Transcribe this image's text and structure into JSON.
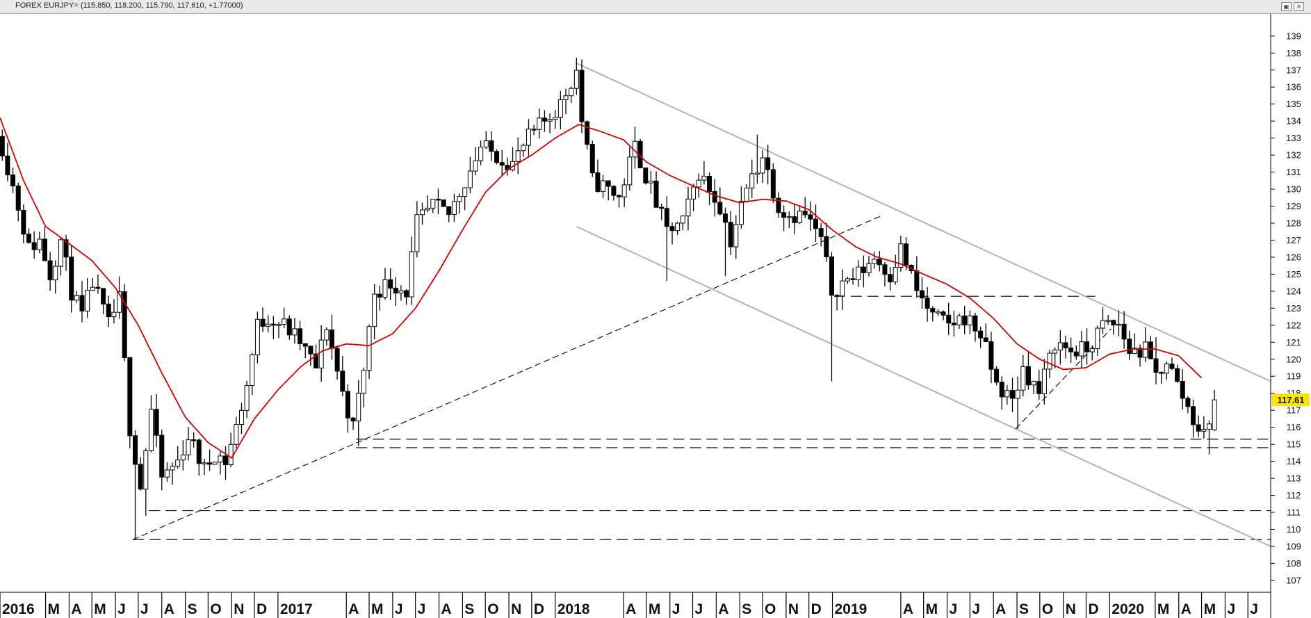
{
  "window": {
    "title": "FOREX EURJPY= (115.850, 118.200, 115.790, 117.610, +1.77000)",
    "restore_icon": "restore-icon",
    "close_icon": "close-icon"
  },
  "chart_data": {
    "type": "candlestick",
    "instrument": "FOREX EURJPY=",
    "ohlc_header": {
      "open": 115.85,
      "high": 118.2,
      "low": 115.79,
      "close": 117.61,
      "change": 1.77
    },
    "last_price": "117.61",
    "y_axis": {
      "min": 107,
      "max": 139,
      "ticks": [
        107,
        108,
        109,
        110,
        111,
        112,
        113,
        114,
        115,
        116,
        117,
        118,
        119,
        120,
        121,
        122,
        123,
        124,
        125,
        126,
        127,
        128,
        129,
        130,
        131,
        132,
        133,
        134,
        135,
        136,
        137,
        138,
        139
      ],
      "position": "right"
    },
    "x_axis": {
      "start": "2016-01-01",
      "end": "2020-07-31",
      "labels": [
        {
          "text": "2016",
          "date": "2016-01-01",
          "bold_year": true
        },
        {
          "text": "M",
          "date": "2016-03-01"
        },
        {
          "text": "A",
          "date": "2016-04-01"
        },
        {
          "text": "M",
          "date": "2016-05-01"
        },
        {
          "text": "J",
          "date": "2016-06-01"
        },
        {
          "text": "J",
          "date": "2016-07-01"
        },
        {
          "text": "A",
          "date": "2016-08-01"
        },
        {
          "text": "S",
          "date": "2016-09-01"
        },
        {
          "text": "O",
          "date": "2016-10-01"
        },
        {
          "text": "N",
          "date": "2016-11-01"
        },
        {
          "text": "D",
          "date": "2016-12-01"
        },
        {
          "text": "2017",
          "date": "2017-01-01",
          "bold_year": true
        },
        {
          "text": "A",
          "date": "2017-04-01"
        },
        {
          "text": "M",
          "date": "2017-05-01"
        },
        {
          "text": "J",
          "date": "2017-06-01"
        },
        {
          "text": "J",
          "date": "2017-07-01"
        },
        {
          "text": "A",
          "date": "2017-08-01"
        },
        {
          "text": "S",
          "date": "2017-09-01"
        },
        {
          "text": "O",
          "date": "2017-10-01"
        },
        {
          "text": "N",
          "date": "2017-11-01"
        },
        {
          "text": "D",
          "date": "2017-12-01"
        },
        {
          "text": "2018",
          "date": "2018-01-01",
          "bold_year": true
        },
        {
          "text": "A",
          "date": "2018-04-01"
        },
        {
          "text": "M",
          "date": "2018-05-01"
        },
        {
          "text": "J",
          "date": "2018-06-01"
        },
        {
          "text": "J",
          "date": "2018-07-01"
        },
        {
          "text": "A",
          "date": "2018-08-01"
        },
        {
          "text": "S",
          "date": "2018-09-01"
        },
        {
          "text": "O",
          "date": "2018-10-01"
        },
        {
          "text": "N",
          "date": "2018-11-01"
        },
        {
          "text": "D",
          "date": "2018-12-01"
        },
        {
          "text": "2019",
          "date": "2019-01-01",
          "bold_year": true
        },
        {
          "text": "A",
          "date": "2019-04-01"
        },
        {
          "text": "M",
          "date": "2019-05-01"
        },
        {
          "text": "J",
          "date": "2019-06-01"
        },
        {
          "text": "J",
          "date": "2019-07-01"
        },
        {
          "text": "A",
          "date": "2019-08-01"
        },
        {
          "text": "S",
          "date": "2019-09-01"
        },
        {
          "text": "O",
          "date": "2019-10-01"
        },
        {
          "text": "N",
          "date": "2019-11-01"
        },
        {
          "text": "D",
          "date": "2019-12-01"
        },
        {
          "text": "2020",
          "date": "2020-01-01",
          "bold_year": true
        },
        {
          "text": "M",
          "date": "2020-03-01"
        },
        {
          "text": "A",
          "date": "2020-04-01"
        },
        {
          "text": "M",
          "date": "2020-05-01"
        },
        {
          "text": "J",
          "date": "2020-06-01"
        },
        {
          "text": "J",
          "date": "2020-07-01"
        }
      ]
    },
    "price_anchors": [
      [
        "2016-01-04",
        132.5
      ],
      [
        "2016-01-25",
        129.0
      ],
      [
        "2016-02-08",
        126.5
      ],
      [
        "2016-02-22",
        127.0
      ],
      [
        "2016-03-07",
        125.0
      ],
      [
        "2016-03-21",
        127.0
      ],
      [
        "2016-04-04",
        124.0
      ],
      [
        "2016-04-18",
        122.5
      ],
      [
        "2016-05-02",
        124.5
      ],
      [
        "2016-05-23",
        122.0
      ],
      [
        "2016-06-06",
        123.5
      ],
      [
        "2016-06-20",
        116.0
      ],
      [
        "2016-07-04",
        112.5
      ],
      [
        "2016-07-18",
        117.0
      ],
      [
        "2016-08-01",
        113.0
      ],
      [
        "2016-08-22",
        114.0
      ],
      [
        "2016-09-05",
        115.5
      ],
      [
        "2016-09-26",
        113.5
      ],
      [
        "2016-10-10",
        114.5
      ],
      [
        "2016-10-24",
        114.0
      ],
      [
        "2016-11-07",
        116.0
      ],
      [
        "2016-11-21",
        118.5
      ],
      [
        "2016-12-05",
        122.0
      ],
      [
        "2016-12-19",
        122.5
      ],
      [
        "2017-01-09",
        122.0
      ],
      [
        "2017-01-30",
        121.0
      ],
      [
        "2017-02-20",
        119.5
      ],
      [
        "2017-03-06",
        122.0
      ],
      [
        "2017-03-27",
        118.0
      ],
      [
        "2017-04-10",
        116.0
      ],
      [
        "2017-04-24",
        119.5
      ],
      [
        "2017-05-08",
        124.0
      ],
      [
        "2017-05-29",
        124.5
      ],
      [
        "2017-06-19",
        124.0
      ],
      [
        "2017-07-03",
        128.0
      ],
      [
        "2017-07-24",
        129.0
      ],
      [
        "2017-08-14",
        128.5
      ],
      [
        "2017-09-04",
        130.5
      ],
      [
        "2017-09-25",
        132.5
      ],
      [
        "2017-10-16",
        132.0
      ],
      [
        "2017-11-06",
        131.5
      ],
      [
        "2017-11-27",
        133.0
      ],
      [
        "2017-12-18",
        134.0
      ],
      [
        "2018-01-08",
        135.0
      ],
      [
        "2018-01-29",
        137.0
      ],
      [
        "2018-02-05",
        134.0
      ],
      [
        "2018-02-19",
        130.5
      ],
      [
        "2018-03-12",
        130.0
      ],
      [
        "2018-03-26",
        129.5
      ],
      [
        "2018-04-16",
        132.5
      ],
      [
        "2018-05-07",
        130.0
      ],
      [
        "2018-05-28",
        127.5
      ],
      [
        "2018-06-18",
        128.0
      ],
      [
        "2018-07-09",
        131.0
      ],
      [
        "2018-08-06",
        129.0
      ],
      [
        "2018-08-20",
        127.0
      ],
      [
        "2018-09-10",
        130.0
      ],
      [
        "2018-10-01",
        132.0
      ],
      [
        "2018-10-22",
        129.0
      ],
      [
        "2018-11-05",
        128.5
      ],
      [
        "2018-11-26",
        128.5
      ],
      [
        "2018-12-17",
        127.0
      ],
      [
        "2018-12-31",
        124.0
      ],
      [
        "2019-01-14",
        124.5
      ],
      [
        "2019-02-04",
        125.0
      ],
      [
        "2019-02-25",
        126.0
      ],
      [
        "2019-03-18",
        125.0
      ],
      [
        "2019-04-01",
        126.5
      ],
      [
        "2019-04-22",
        124.0
      ],
      [
        "2019-05-13",
        122.5
      ],
      [
        "2019-06-03",
        122.0
      ],
      [
        "2019-06-24",
        122.5
      ],
      [
        "2019-07-15",
        121.5
      ],
      [
        "2019-08-05",
        118.5
      ],
      [
        "2019-08-26",
        117.5
      ],
      [
        "2019-09-09",
        119.5
      ],
      [
        "2019-09-30",
        118.0
      ],
      [
        "2019-10-21",
        121.0
      ],
      [
        "2019-11-11",
        120.5
      ],
      [
        "2019-12-02",
        120.5
      ],
      [
        "2019-12-23",
        122.0
      ],
      [
        "2020-01-13",
        122.0
      ],
      [
        "2020-01-27",
        120.5
      ],
      [
        "2020-02-17",
        120.5
      ],
      [
        "2020-03-02",
        119.0
      ],
      [
        "2020-03-16",
        120.0
      ],
      [
        "2020-03-30",
        118.5
      ],
      [
        "2020-04-20",
        116.5
      ],
      [
        "2020-05-04",
        115.5
      ],
      [
        "2020-05-18",
        117.6
      ]
    ],
    "notable_wicks": [
      {
        "date": "2016-06-24",
        "low": 109.4
      },
      {
        "date": "2016-07-08",
        "low": 110.8
      },
      {
        "date": "2017-04-14",
        "low": 114.9
      },
      {
        "date": "2018-01-29",
        "high": 137.5
      },
      {
        "date": "2018-05-28",
        "low": 124.6
      },
      {
        "date": "2018-08-13",
        "low": 124.9
      },
      {
        "date": "2018-09-24",
        "high": 133.2
      },
      {
        "date": "2019-01-03",
        "low": 118.7
      },
      {
        "date": "2019-08-30",
        "low": 115.9
      },
      {
        "date": "2019-12-23",
        "high": 122.9
      },
      {
        "date": "2020-02-28",
        "high": 121.3
      },
      {
        "date": "2020-05-08",
        "low": 114.4
      },
      {
        "date": "2020-05-22",
        "high": 118.2
      }
    ],
    "series": [
      {
        "kind": "candles",
        "up_color": "#ffffff",
        "down_color": "#000000"
      },
      {
        "kind": "moving_average",
        "color": "#d40000",
        "points": [
          [
            "2016-01-01",
            134.2
          ],
          [
            "2016-02-01",
            130.5
          ],
          [
            "2016-03-01",
            127.8
          ],
          [
            "2016-04-01",
            126.8
          ],
          [
            "2016-05-01",
            125.8
          ],
          [
            "2016-06-01",
            124.2
          ],
          [
            "2016-07-01",
            122.0
          ],
          [
            "2016-08-01",
            119.2
          ],
          [
            "2016-09-01",
            116.6
          ],
          [
            "2016-10-01",
            115.1
          ],
          [
            "2016-11-01",
            114.2
          ],
          [
            "2016-12-01",
            116.5
          ],
          [
            "2017-01-01",
            118.2
          ],
          [
            "2017-02-01",
            119.6
          ],
          [
            "2017-03-01",
            120.5
          ],
          [
            "2017-04-01",
            120.9
          ],
          [
            "2017-05-01",
            120.8
          ],
          [
            "2017-06-01",
            121.5
          ],
          [
            "2017-07-01",
            123.0
          ],
          [
            "2017-08-01",
            125.2
          ],
          [
            "2017-09-01",
            127.6
          ],
          [
            "2017-10-01",
            129.8
          ],
          [
            "2017-11-01",
            131.2
          ],
          [
            "2017-12-01",
            132.0
          ],
          [
            "2018-01-01",
            133.0
          ],
          [
            "2018-02-01",
            133.8
          ],
          [
            "2018-03-01",
            133.4
          ],
          [
            "2018-04-01",
            132.9
          ],
          [
            "2018-05-01",
            131.6
          ],
          [
            "2018-06-01",
            130.8
          ],
          [
            "2018-07-01",
            130.2
          ],
          [
            "2018-08-01",
            129.6
          ],
          [
            "2018-09-01",
            129.2
          ],
          [
            "2018-10-01",
            129.4
          ],
          [
            "2018-11-01",
            129.3
          ],
          [
            "2018-12-01",
            128.8
          ],
          [
            "2019-01-01",
            127.6
          ],
          [
            "2019-02-01",
            126.6
          ],
          [
            "2019-03-01",
            126.0
          ],
          [
            "2019-04-01",
            125.6
          ],
          [
            "2019-05-01",
            125.0
          ],
          [
            "2019-06-01",
            124.4
          ],
          [
            "2019-07-01",
            123.6
          ],
          [
            "2019-08-01",
            122.4
          ],
          [
            "2019-09-01",
            120.9
          ],
          [
            "2019-10-01",
            120.0
          ],
          [
            "2019-11-01",
            119.4
          ],
          [
            "2019-12-01",
            119.5
          ],
          [
            "2020-01-01",
            120.3
          ],
          [
            "2020-02-01",
            120.6
          ],
          [
            "2020-03-01",
            120.6
          ],
          [
            "2020-04-01",
            120.2
          ],
          [
            "2020-05-01",
            118.9
          ]
        ]
      }
    ],
    "trendlines": [
      {
        "style": "solid",
        "color": "#b4b4b4",
        "from": [
          "2018-01-29",
          137.4
        ],
        "to": [
          "2020-07-31",
          118.7
        ]
      },
      {
        "style": "solid",
        "color": "#b4b4b4",
        "from": [
          "2018-01-29",
          127.8
        ],
        "to": [
          "2020-07-31",
          109.0
        ]
      },
      {
        "style": "dashed",
        "color": "#000000",
        "from": [
          "2016-06-24",
          109.4
        ],
        "to": [
          "2019-03-05",
          128.4
        ]
      },
      {
        "style": "dashed",
        "color": "#000000",
        "from": [
          "2019-08-30",
          115.9
        ],
        "to": [
          "2020-01-03",
          121.8
        ]
      }
    ],
    "horizontal_levels": [
      {
        "style": "dashed",
        "value": 123.7,
        "from": "2019-01-03",
        "to": "2019-12-16"
      },
      {
        "style": "dashed",
        "value": 115.3,
        "from": "2017-04-14",
        "to": "2020-07-31"
      },
      {
        "style": "dashed",
        "value": 114.8,
        "from": "2017-04-14",
        "to": "2020-07-31"
      },
      {
        "style": "dashed",
        "value": 111.1,
        "from": "2016-07-15",
        "to": "2020-07-31"
      },
      {
        "style": "dashed",
        "value": 109.4,
        "from": "2016-06-24",
        "to": "2020-07-31"
      }
    ],
    "grid": false,
    "legend": "none"
  }
}
